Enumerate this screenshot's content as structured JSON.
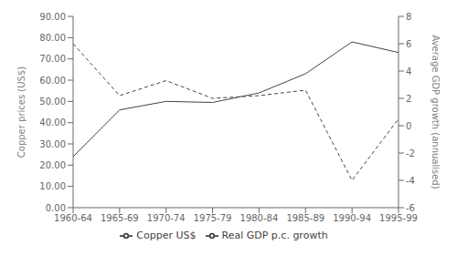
{
  "chart_data": {
    "type": "line",
    "categories": [
      "1960-64",
      "1965-69",
      "1970-74",
      "1975-79",
      "1980-84",
      "1985-89",
      "1990-94",
      "1995-99"
    ],
    "series": [
      {
        "name": "Copper US$",
        "color": "#444444",
        "line_style": "solid",
        "values": [
          24.0,
          46.0,
          50.0,
          49.5,
          54.0,
          63.0,
          78.0,
          73.0
        ]
      },
      {
        "name": "Real GDP p.c. growth",
        "color": "#444444",
        "line_style": "dashed",
        "axis": "y2",
        "values": [
          6.0,
          2.2,
          3.3,
          2.0,
          2.2,
          2.6,
          -4.0,
          0.5
        ]
      }
    ],
    "ylabel": "Copper prices (US$)",
    "y2label": "Average GDP growth (annualised)",
    "ylim": [
      0,
      90
    ],
    "yticks": [
      {
        "value": 0,
        "label": "0.00"
      },
      {
        "value": 10,
        "label": "10.00"
      },
      {
        "value": 20,
        "label": "20.00"
      },
      {
        "value": 30,
        "label": "30.00"
      },
      {
        "value": 40,
        "label": "40.00"
      },
      {
        "value": 50,
        "label": "50.00"
      },
      {
        "value": 60,
        "label": "60.00"
      },
      {
        "value": 70,
        "label": "70.00"
      },
      {
        "value": 80,
        "label": "80.00"
      },
      {
        "value": 90,
        "label": "90.00"
      }
    ],
    "y2lim": [
      -6,
      8
    ],
    "y2ticks": [
      -6,
      -4,
      -2,
      0,
      2,
      4,
      6,
      8
    ],
    "grid": false,
    "legend": "bottom"
  }
}
